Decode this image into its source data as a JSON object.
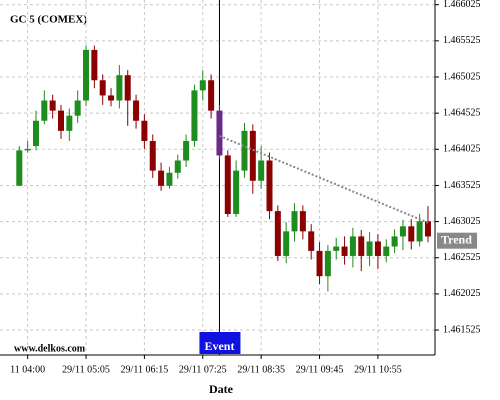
{
  "chart_data": {
    "type": "candlestick",
    "title": "GC 5 (COMEX)",
    "source": "www.delkos.com",
    "x_label": "Date",
    "categories": [
      null,
      "11 04:00",
      null,
      null,
      null,
      null,
      null,
      null,
      "29/11 05:05",
      null,
      null,
      null,
      null,
      null,
      null,
      "29/11 06:15",
      null,
      null,
      null,
      null,
      null,
      null,
      "29/11 07:25",
      null,
      null,
      null,
      null,
      null,
      null,
      "29/11 08:35",
      null,
      null,
      null,
      null,
      null,
      null,
      "29/11 09:45",
      null,
      null,
      null,
      null,
      null,
      null,
      "29/11 10:55",
      null,
      null,
      null,
      null,
      null,
      null
    ],
    "open": [
      1.46352,
      1.46401,
      1.46407,
      1.46442,
      1.4647,
      1.46456,
      1.46428,
      1.46449,
      1.4647,
      1.4654,
      1.46498,
      1.46477,
      1.4647,
      1.46505,
      1.4647,
      1.46442,
      1.46414,
      1.46373,
      1.46352,
      1.4637,
      1.46387,
      1.46414,
      1.46484,
      1.46498,
      1.46456,
      1.46394,
      1.46313,
      1.46373,
      1.46428,
      1.46359,
      1.46387,
      1.46317,
      1.46255,
      1.46289,
      1.46317,
      1.46289,
      1.46262,
      1.46227,
      1.46262,
      1.46268,
      1.46255,
      1.46282,
      1.46255,
      1.46275,
      1.46255,
      1.46268,
      1.46282,
      1.46296,
      1.46275,
      1.46303
    ],
    "high": [
      1.46407,
      1.46414,
      1.46456,
      1.46484,
      1.46478,
      1.46464,
      1.46459,
      1.46484,
      1.46546,
      1.46546,
      1.46506,
      1.46487,
      1.46519,
      1.46512,
      1.46478,
      1.46451,
      1.46423,
      1.46384,
      1.46378,
      1.46395,
      1.46423,
      1.46492,
      1.46512,
      1.46506,
      1.46464,
      1.46401,
      1.46387,
      1.46439,
      1.46437,
      1.46407,
      1.46398,
      1.46325,
      1.46302,
      1.46328,
      1.46325,
      1.46299,
      1.46274,
      1.4627,
      1.4628,
      1.46282,
      1.46294,
      1.46291,
      1.46288,
      1.46285,
      1.46278,
      1.46292,
      1.46305,
      1.46306,
      1.46313,
      1.46324
    ],
    "low": [
      1.46352,
      1.46398,
      1.46401,
      1.46437,
      1.46445,
      1.46417,
      1.46414,
      1.46439,
      1.46462,
      1.46487,
      1.46464,
      1.46462,
      1.46459,
      1.46435,
      1.46431,
      1.46403,
      1.46363,
      1.46345,
      1.46348,
      1.46362,
      1.46378,
      1.46406,
      1.4647,
      1.46445,
      1.46389,
      1.46309,
      1.46309,
      1.46363,
      1.46341,
      1.46348,
      1.46306,
      1.46248,
      1.46245,
      1.46275,
      1.46278,
      1.4625,
      1.46216,
      1.46206,
      1.4625,
      1.46243,
      1.46239,
      1.46234,
      1.46241,
      1.46237,
      1.46246,
      1.46259,
      1.46263,
      1.46264,
      1.46268,
      1.46274
    ],
    "close": [
      1.46401,
      1.46403,
      1.46442,
      1.4647,
      1.46456,
      1.46428,
      1.46449,
      1.4647,
      1.4654,
      1.46498,
      1.46477,
      1.4647,
      1.46505,
      1.4647,
      1.46442,
      1.46414,
      1.46373,
      1.46352,
      1.4637,
      1.46387,
      1.46414,
      1.46484,
      1.46498,
      1.46456,
      1.46394,
      1.46313,
      1.46373,
      1.46428,
      1.46359,
      1.46387,
      1.46317,
      1.46255,
      1.46289,
      1.46317,
      1.46289,
      1.46262,
      1.46227,
      1.46262,
      1.46268,
      1.46255,
      1.46282,
      1.46255,
      1.46275,
      1.46255,
      1.46268,
      1.46282,
      1.46296,
      1.46275,
      1.46303,
      1.46282
    ],
    "up_color": "#1e8c1e",
    "down_color": "#8b0000",
    "event_color": "#6a2a8a",
    "ylim": [
      1.46118,
      1.46609
    ],
    "yticks": [
      1.461525,
      1.462025,
      1.462525,
      1.463025,
      1.463525,
      1.464025,
      1.464525,
      1.465025,
      1.465525,
      1.466025
    ],
    "grid": true,
    "event": {
      "label": "Event",
      "index": 24,
      "color": "#1010e0"
    },
    "trend": {
      "label": "Trend",
      "index": [
        24,
        49
      ],
      "values": [
        1.46421,
        1.46301
      ],
      "color": "#888888"
    }
  }
}
